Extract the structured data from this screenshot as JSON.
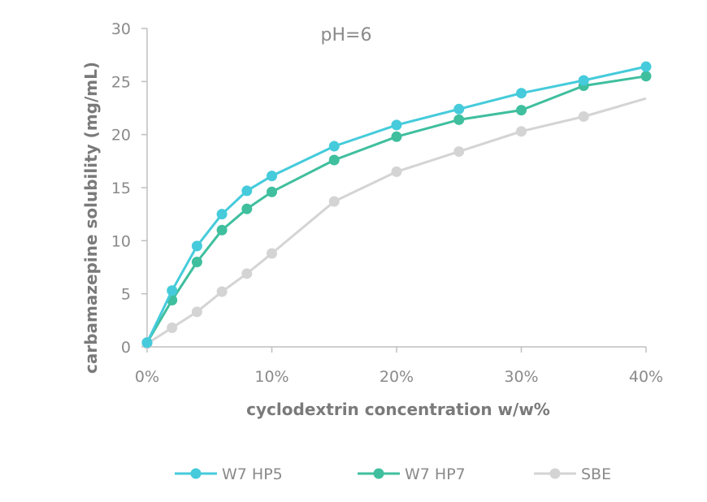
{
  "chart_data": {
    "type": "line",
    "title": "pH=6",
    "xlabel": "cyclodextrin concentration w/w%",
    "ylabel": "carbamazepine solubility  (mg/mL)",
    "xlim": [
      0,
      40
    ],
    "ylim": [
      0,
      30
    ],
    "x_ticks": [
      0,
      10,
      20,
      30,
      40
    ],
    "x_tick_labels": [
      "0%",
      "10%",
      "20%",
      "30%",
      "40%"
    ],
    "y_ticks": [
      0,
      5,
      10,
      15,
      20,
      25,
      30
    ],
    "y_tick_labels": [
      "0",
      "5",
      "10",
      "15",
      "20",
      "25",
      "30"
    ],
    "grid": false,
    "legend_position": "bottom",
    "series": [
      {
        "name": "W7 HP5",
        "color": "#45cbdb",
        "x": [
          0,
          2,
          4,
          6,
          8,
          10,
          15,
          20,
          25,
          30,
          35,
          40
        ],
        "y": [
          0.4,
          5.3,
          9.5,
          12.5,
          14.7,
          16.1,
          18.9,
          20.9,
          22.4,
          23.9,
          25.1,
          26.4
        ]
      },
      {
        "name": "W7 HP7",
        "color": "#3fbf9e",
        "x": [
          0,
          2,
          4,
          6,
          8,
          10,
          15,
          20,
          25,
          30,
          35,
          40
        ],
        "y": [
          0.4,
          4.4,
          8.0,
          11.0,
          13.0,
          14.6,
          17.6,
          19.8,
          21.4,
          22.3,
          24.6,
          25.5
        ]
      },
      {
        "name": "SBE",
        "color": "#d4d4d4",
        "x": [
          0,
          2,
          4,
          6,
          8,
          10,
          15,
          20,
          25,
          30,
          35,
          40
        ],
        "y": [
          0.3,
          1.8,
          3.3,
          5.2,
          6.9,
          8.8,
          13.7,
          16.5,
          18.4,
          20.3,
          21.7,
          23.4
        ]
      }
    ]
  }
}
